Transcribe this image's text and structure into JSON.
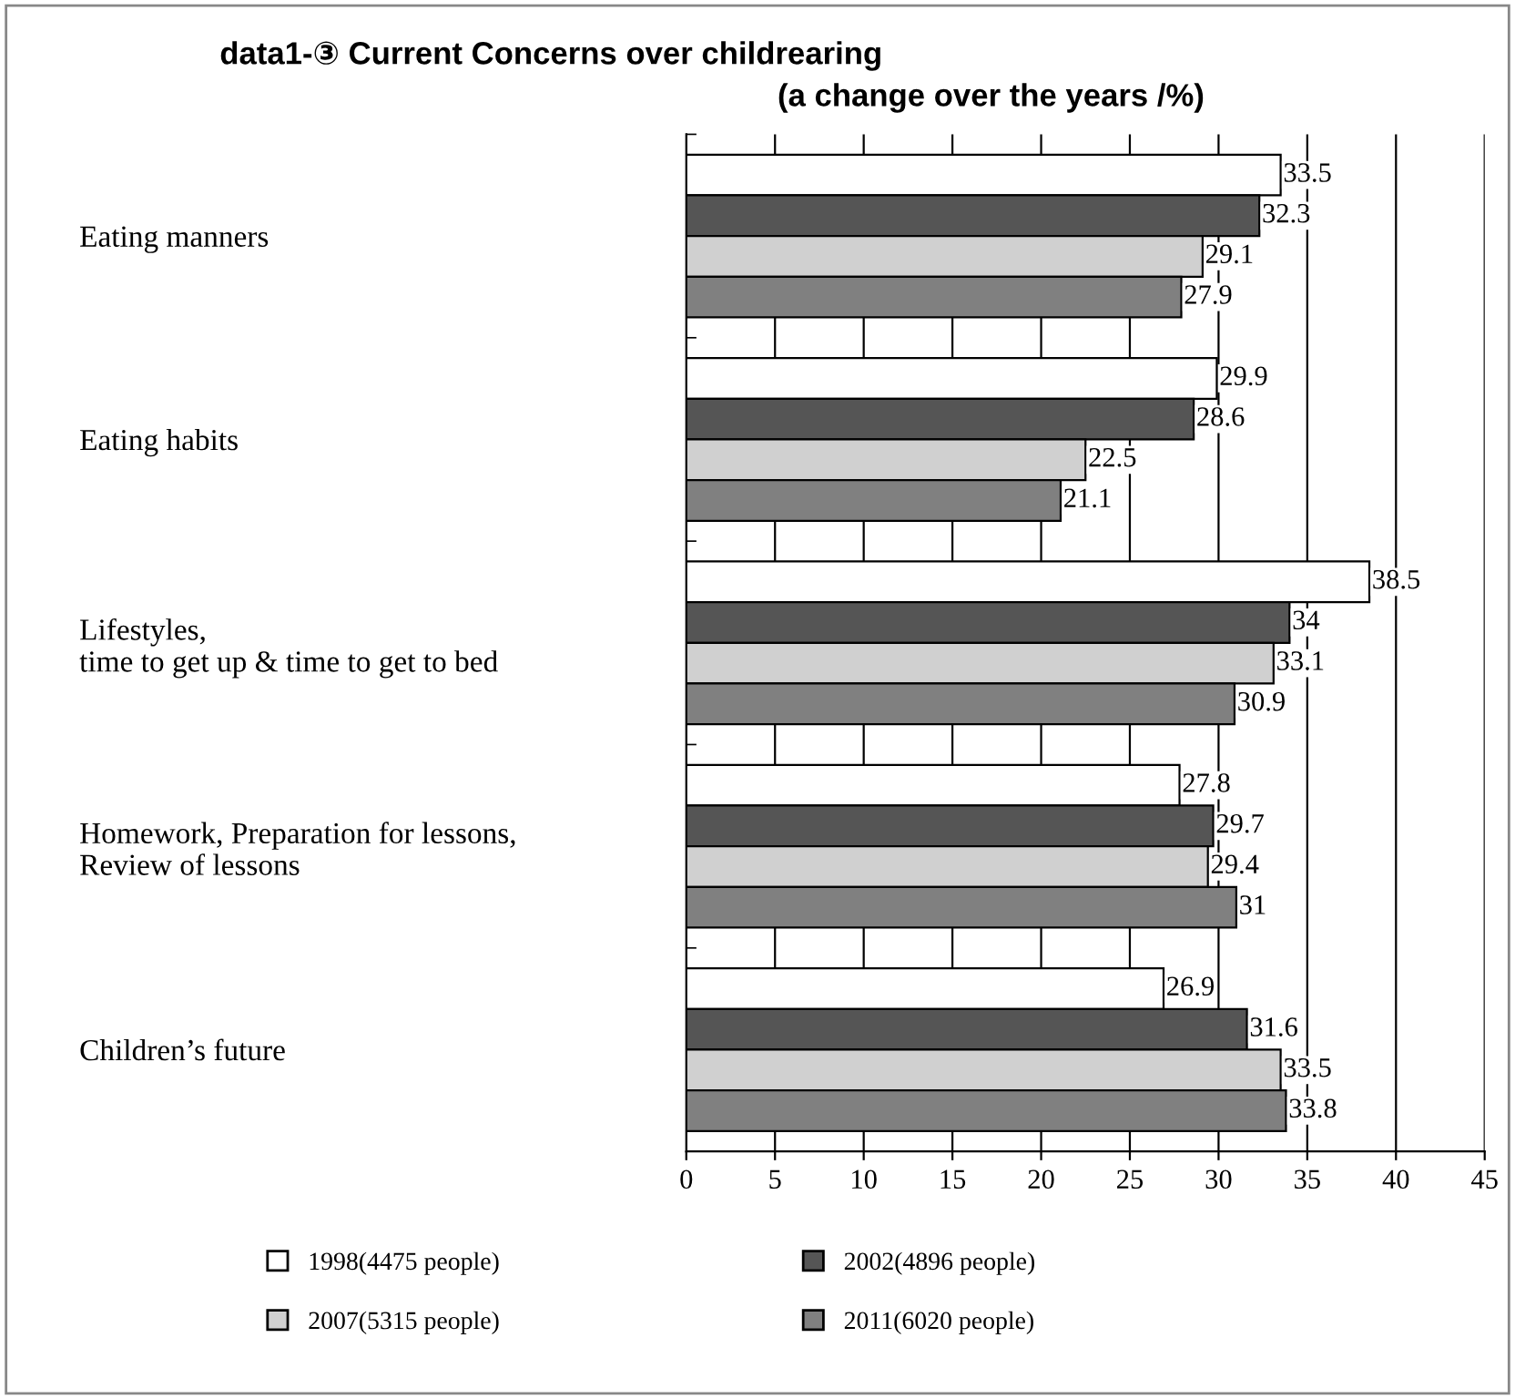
{
  "chart_data": {
    "type": "bar",
    "orientation": "horizontal",
    "title": "data1-③ Current Concerns over childrearing",
    "subtitle": "(a change over the years /%)",
    "categories": [
      "Eating manners",
      "Eating habits",
      "Lifestyles,\ntime to get up & time to get to bed",
      "Homework, Preparation for lessons,\nReview of lessons",
      "Children’s future"
    ],
    "series": [
      {
        "name": "1998(4475 people)",
        "color": "#ffffff",
        "values": [
          33.5,
          29.9,
          38.5,
          27.8,
          26.9
        ]
      },
      {
        "name": "2002(4896 people)",
        "color": "#555555",
        "values": [
          32.3,
          28.6,
          34,
          29.7,
          31.6
        ]
      },
      {
        "name": "2007(5315 people)",
        "color": "#d0d0d0",
        "values": [
          29.1,
          22.5,
          33.1,
          29.4,
          33.5
        ]
      },
      {
        "name": "2011(6020 people)",
        "color": "#808080",
        "values": [
          27.9,
          21.1,
          30.9,
          31,
          33.8
        ]
      }
    ],
    "xlim": [
      0,
      45
    ],
    "xticks": [
      0,
      5,
      10,
      15,
      20,
      25,
      30,
      35,
      40,
      45
    ],
    "grid": "x",
    "legend": "bottom",
    "data_labels": true
  }
}
